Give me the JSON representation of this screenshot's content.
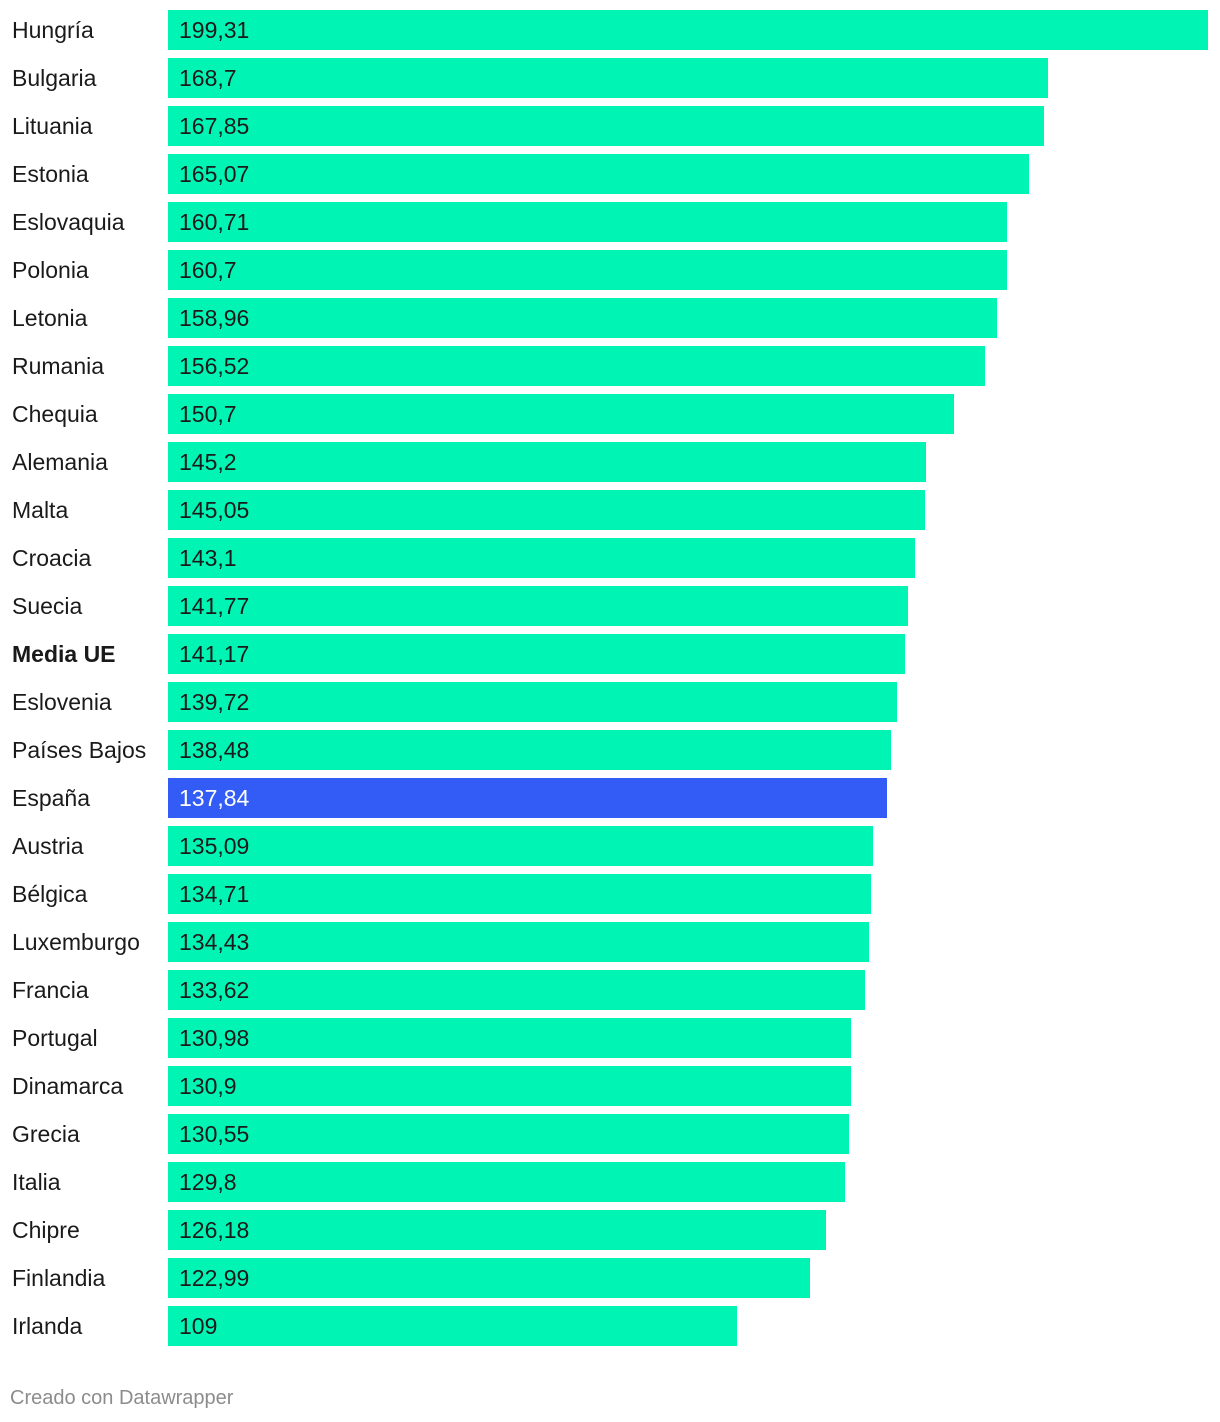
{
  "chart_data": {
    "type": "bar",
    "orientation": "horizontal",
    "categories": [
      "Hungría",
      "Bulgaria",
      "Lituania",
      "Estonia",
      "Eslovaquia",
      "Polonia",
      "Letonia",
      "Rumania",
      "Chequia",
      "Alemania",
      "Malta",
      "Croacia",
      "Suecia",
      "Media UE",
      "Eslovenia",
      "Países Bajos",
      "España",
      "Austria",
      "Bélgica",
      "Luxemburgo",
      "Francia",
      "Portugal",
      "Dinamarca",
      "Grecia",
      "Italia",
      "Chipre",
      "Finlandia",
      "Irlanda"
    ],
    "values": [
      199.31,
      168.7,
      167.85,
      165.07,
      160.71,
      160.7,
      158.96,
      156.52,
      150.7,
      145.2,
      145.05,
      143.1,
      141.77,
      141.17,
      139.72,
      138.48,
      137.84,
      135.09,
      134.71,
      134.43,
      133.62,
      130.98,
      130.9,
      130.55,
      129.8,
      126.18,
      122.99,
      109
    ],
    "value_labels": [
      "199,31",
      "168,7",
      "167,85",
      "165,07",
      "160,71",
      "160,7",
      "158,96",
      "156,52",
      "150,7",
      "145,2",
      "145,05",
      "143,1",
      "141,77",
      "141,17",
      "139,72",
      "138,48",
      "137,84",
      "135,09",
      "134,71",
      "134,43",
      "133,62",
      "130,98",
      "130,9",
      "130,55",
      "129,8",
      "126,18",
      "122,99",
      "109"
    ],
    "highlight": {
      "category": "España",
      "color": "#325cf5"
    },
    "emphasized_category": "Media UE",
    "bar_color": "#00f5b4",
    "xlim": [
      0,
      199.31
    ],
    "title": "",
    "xlabel": "",
    "ylabel": "",
    "grid": false,
    "legend": false
  },
  "footer": {
    "credit": "Creado con Datawrapper"
  }
}
